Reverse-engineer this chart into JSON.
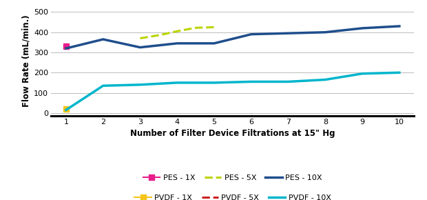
{
  "title": "",
  "xlabel": "Number of Filter Device Filtrations at 15\" Hg",
  "ylabel": "Flow Rate (mL/min.)",
  "ylim": [
    -15,
    530
  ],
  "xlim": [
    0.6,
    10.4
  ],
  "xticks": [
    1,
    2,
    3,
    4,
    5,
    6,
    7,
    8,
    9,
    10
  ],
  "yticks": [
    0,
    100,
    200,
    300,
    400,
    500
  ],
  "series": {
    "PES_1X": {
      "x": [
        1
      ],
      "y": [
        330
      ],
      "color": "#e91e8c",
      "linestyle": "-",
      "linewidth": 1.5,
      "marker": "s",
      "markersize": 6,
      "label": "PES - 1X"
    },
    "PES_5X": {
      "x": [
        3,
        3.5,
        4,
        4.5,
        5
      ],
      "y": [
        370,
        385,
        405,
        422,
        425
      ],
      "color": "#bcd400",
      "linestyle": "--",
      "linewidth": 2.2,
      "marker": null,
      "markersize": 0,
      "label": "PES - 5X"
    },
    "PES_10X": {
      "x": [
        1,
        2,
        3,
        4,
        5,
        6,
        7,
        8,
        9,
        10
      ],
      "y": [
        320,
        365,
        325,
        345,
        345,
        390,
        395,
        400,
        420,
        430
      ],
      "color": "#1f4e8c",
      "linestyle": "-",
      "linewidth": 2.5,
      "marker": null,
      "markersize": 0,
      "label": "PES - 10X"
    },
    "PVDF_1X": {
      "x": [
        1
      ],
      "y": [
        20
      ],
      "color": "#f5c518",
      "linestyle": "-",
      "linewidth": 1.5,
      "marker": "s",
      "markersize": 6,
      "label": "PVDF - 1X"
    },
    "PVDF_5X": {
      "x": [],
      "y": [],
      "color": "#cc2222",
      "linestyle": "--",
      "linewidth": 2.2,
      "marker": null,
      "markersize": 0,
      "label": "PVDF - 5X"
    },
    "PVDF_10X": {
      "x": [
        1,
        2,
        3,
        4,
        5,
        6,
        7,
        8,
        9,
        10
      ],
      "y": [
        15,
        135,
        140,
        150,
        150,
        155,
        155,
        165,
        195,
        200
      ],
      "color": "#00b5cc",
      "linestyle": "-",
      "linewidth": 2.5,
      "marker": null,
      "markersize": 0,
      "label": "PVDF - 10X"
    }
  },
  "grid_color": "#bbbbbb",
  "background_color": "#ffffff",
  "legend_row1": [
    "PES_1X",
    "PES_5X",
    "PES_10X"
  ],
  "legend_row2": [
    "PVDF_1X",
    "PVDF_5X",
    "PVDF_10X"
  ]
}
